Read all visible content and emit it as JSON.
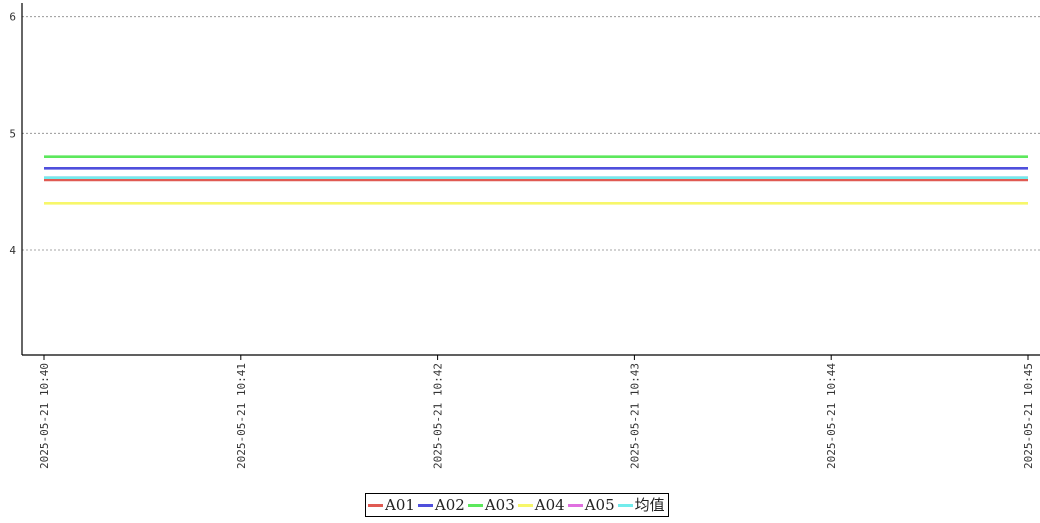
{
  "chart_data": {
    "type": "line",
    "title": "",
    "xlabel": "",
    "ylabel": "",
    "x": [
      "2025-05-21 10:40",
      "2025-05-21 10:41",
      "2025-05-21 10:42",
      "2025-05-21 10:43",
      "2025-05-21 10:44",
      "2025-05-21 10:45"
    ],
    "ylim": [
      3.1,
      6.1
    ],
    "yticks": [
      "4",
      "5",
      "6"
    ],
    "grid": "horizontal dashed",
    "legend_position": "bottom-center",
    "series": [
      {
        "name": "A01",
        "color": "#e05a52",
        "values": [
          4.6,
          4.6,
          4.6,
          4.6,
          4.6,
          4.6
        ]
      },
      {
        "name": "A02",
        "color": "#4f4fdc",
        "values": [
          4.7,
          4.7,
          4.7,
          4.7,
          4.7,
          4.7
        ]
      },
      {
        "name": "A03",
        "color": "#5ce85c",
        "values": [
          4.8,
          4.8,
          4.8,
          4.8,
          4.8,
          4.8
        ]
      },
      {
        "name": "A04",
        "color": "#f7f76a",
        "values": [
          4.4,
          4.4,
          4.4,
          4.4,
          4.4,
          4.4
        ]
      },
      {
        "name": "A05",
        "color": "#e070e0",
        "values": [
          4.62,
          4.62,
          4.62,
          4.62,
          4.62,
          4.62
        ]
      },
      {
        "name": "均值",
        "color": "#72ecec",
        "values": [
          4.62,
          4.62,
          4.62,
          4.62,
          4.62,
          4.62
        ]
      }
    ]
  }
}
